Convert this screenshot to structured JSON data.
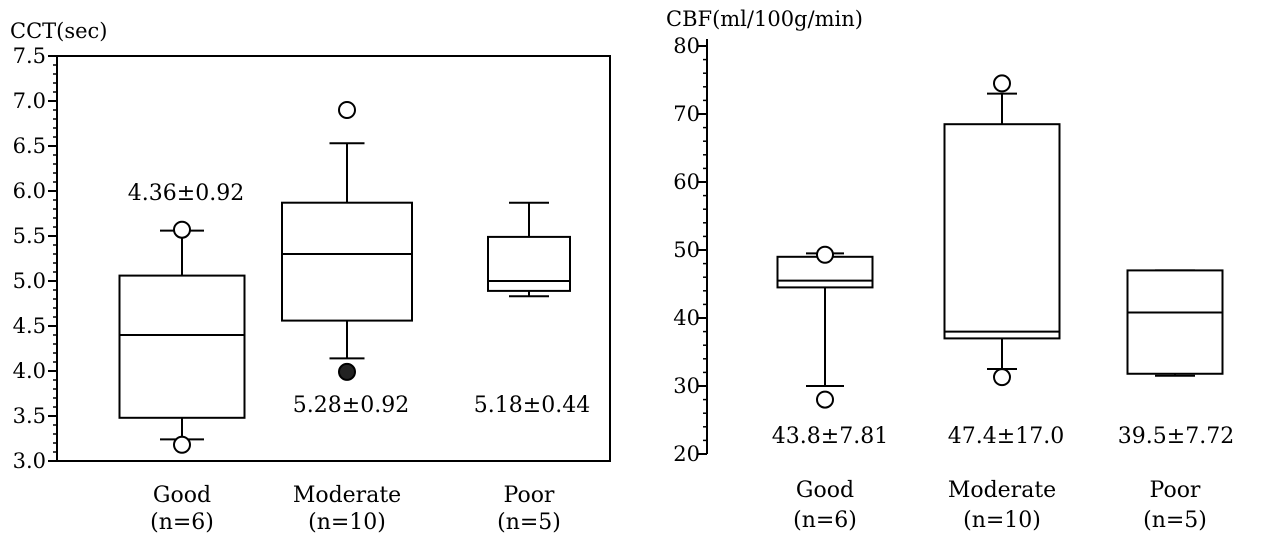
{
  "chart_data": [
    {
      "type": "box",
      "ylabel": "CCT(sec)",
      "ylim": [
        3.0,
        7.5
      ],
      "yticks": [
        "3.0",
        "3.5",
        "4.0",
        "4.5",
        "5.0",
        "5.5",
        "6.0",
        "6.5",
        "7.0",
        "7.5"
      ],
      "minor_step": 0.1,
      "categories": [
        "Good",
        "Moderate",
        "Poor"
      ],
      "category_n": [
        "(n=6)",
        "(n=10)",
        "(n=5)"
      ],
      "boxes": [
        {
          "whisker_low": 3.24,
          "q1": 3.48,
          "median": 4.4,
          "q3": 5.06,
          "whisker_high": 5.56,
          "outliers": [
            3.18,
            5.57
          ],
          "filled_outliers": []
        },
        {
          "whisker_low": 4.14,
          "q1": 4.56,
          "median": 5.3,
          "q3": 5.87,
          "whisker_high": 6.53,
          "outliers": [
            6.9
          ],
          "filled_outliers": [
            3.99
          ]
        },
        {
          "whisker_low": 4.83,
          "q1": 4.89,
          "median": 5.0,
          "q3": 5.49,
          "whisker_high": 5.87,
          "outliers": [],
          "filled_outliers": []
        }
      ],
      "annotations": [
        "4.36±0.92",
        "5.28±0.92",
        "5.18±0.44"
      ]
    },
    {
      "type": "box",
      "ylabel": "CBF(ml/100g/min)",
      "ylim": [
        20,
        80
      ],
      "yticks": [
        "20",
        "30",
        "40",
        "50",
        "60",
        "70",
        "80"
      ],
      "minor_step": 2,
      "categories": [
        "Good",
        "Moderate",
        "Poor"
      ],
      "category_n": [
        "(n=6)",
        "(n=10)",
        "(n=5)"
      ],
      "boxes": [
        {
          "whisker_low": 30.0,
          "q1": 44.5,
          "median": 45.5,
          "q3": 49.0,
          "whisker_high": 49.5,
          "outliers": [
            28.0,
            49.3
          ],
          "filled_outliers": []
        },
        {
          "whisker_low": 32.5,
          "q1": 37.0,
          "median": 38.0,
          "q3": 68.5,
          "whisker_high": 73.0,
          "outliers": [
            31.3,
            74.5
          ],
          "filled_outliers": []
        },
        {
          "whisker_low": 31.5,
          "q1": 31.8,
          "median": 40.8,
          "q3": 47.0,
          "whisker_high": 47.0,
          "outliers": [],
          "filled_outliers": []
        }
      ],
      "annotations": [
        "43.8±7.81",
        "47.4±17.0",
        "39.5±7.72"
      ]
    }
  ]
}
